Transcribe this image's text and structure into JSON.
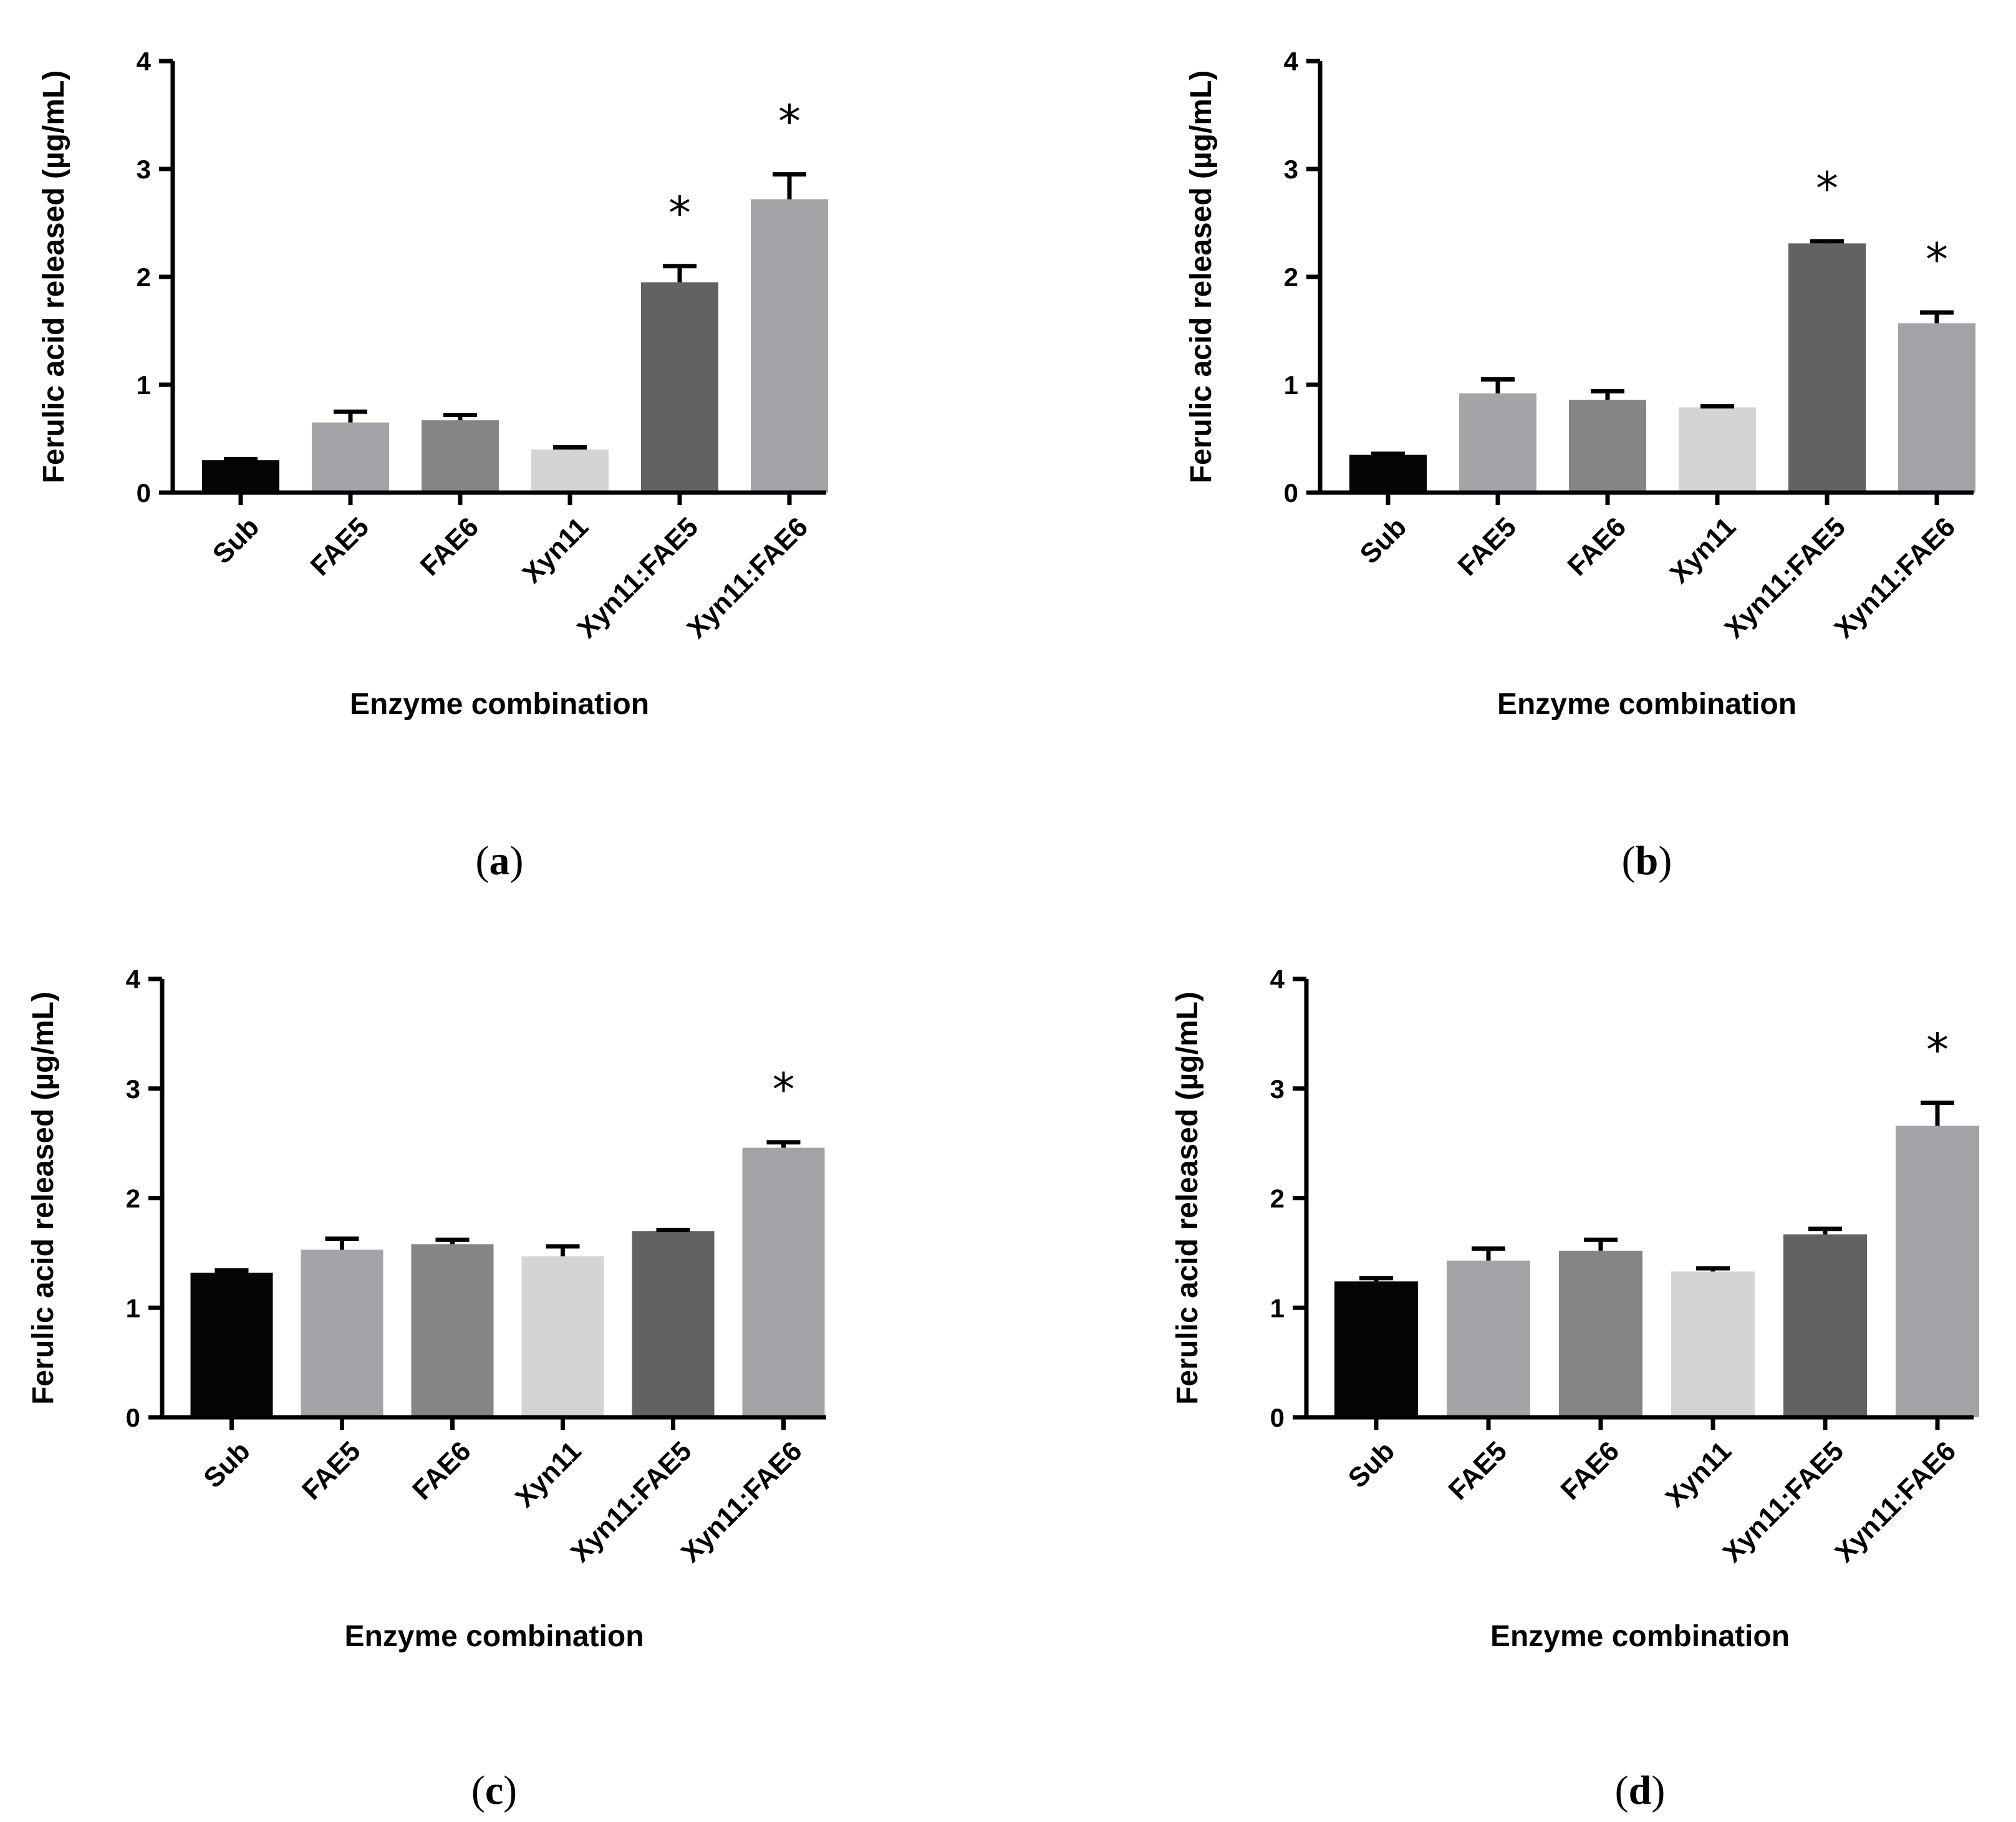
{
  "figure": {
    "panels": [
      "a",
      "b",
      "c",
      "d"
    ]
  },
  "chart_data": [
    {
      "panel": "a",
      "type": "bar",
      "categories": [
        "Sub",
        "FAE5",
        "FAE6",
        "Xyn11",
        "Xyn11:FAE5",
        "Xyn11:FAE6"
      ],
      "values": [
        0.3,
        0.65,
        0.67,
        0.4,
        1.95,
        2.72
      ],
      "errors": [
        0.01,
        0.1,
        0.05,
        0.02,
        0.15,
        0.23
      ],
      "significant": [
        false,
        false,
        false,
        false,
        true,
        true
      ],
      "significance_marker": "*",
      "colors": [
        "#050505",
        "#a3a4a8",
        "#858587",
        "#d4d4d6",
        "#626264",
        "#a2a3a7"
      ],
      "xlabel": "Enzyme combination",
      "ylabel": "Ferulic acid released (µg/mL)",
      "ylim": [
        0,
        4
      ],
      "yticks": [
        "0",
        "1",
        "2",
        "3",
        "4"
      ],
      "panel_label_open": "(",
      "panel_label_letter": "a",
      "panel_label_close": ")"
    },
    {
      "panel": "b",
      "type": "bar",
      "categories": [
        "Sub",
        "FAE5",
        "FAE6",
        "Xyn11",
        "Xyn11:FAE5",
        "Xyn11:FAE6"
      ],
      "values": [
        0.35,
        0.92,
        0.86,
        0.79,
        2.31,
        1.57
      ],
      "errors": [
        0.01,
        0.13,
        0.08,
        0.01,
        0.02,
        0.1
      ],
      "significant": [
        false,
        false,
        false,
        false,
        true,
        true
      ],
      "significance_marker": "*",
      "colors": [
        "#050505",
        "#a3a4a8",
        "#858587",
        "#d4d4d6",
        "#626264",
        "#a2a3a7"
      ],
      "xlabel": "Enzyme combination",
      "ylabel": "Ferulic acid released (µg/mL)",
      "ylim": [
        0,
        4
      ],
      "yticks": [
        "0",
        "1",
        "2",
        "3",
        "4"
      ],
      "panel_label_open": "(",
      "panel_label_letter": "b",
      "panel_label_close": ")"
    },
    {
      "panel": "c",
      "type": "bar",
      "categories": [
        "Sub",
        "FAE5",
        "FAE6",
        "Xyn11",
        "Xyn11:FAE5",
        "Xyn11:FAE6"
      ],
      "values": [
        1.32,
        1.53,
        1.58,
        1.47,
        1.7,
        2.46
      ],
      "errors": [
        0.02,
        0.1,
        0.04,
        0.09,
        0.01,
        0.05
      ],
      "significant": [
        false,
        false,
        false,
        false,
        false,
        true
      ],
      "significance_marker": "*",
      "colors": [
        "#050505",
        "#a3a4a8",
        "#858587",
        "#d4d4d6",
        "#626264",
        "#a2a3a7"
      ],
      "xlabel": "Enzyme combination",
      "ylabel": "Ferulic acid released (µg/mL)",
      "ylim": [
        0,
        4
      ],
      "yticks": [
        "0",
        "1",
        "2",
        "3",
        "4"
      ],
      "panel_label_open": "(",
      "panel_label_letter": "c",
      "panel_label_close": ")"
    },
    {
      "panel": "d",
      "type": "bar",
      "categories": [
        "Sub",
        "FAE5",
        "FAE6",
        "Xyn11",
        "Xyn11:FAE5",
        "Xyn11:FAE6"
      ],
      "values": [
        1.24,
        1.43,
        1.52,
        1.33,
        1.67,
        2.66
      ],
      "errors": [
        0.03,
        0.11,
        0.1,
        0.03,
        0.05,
        0.21
      ],
      "significant": [
        false,
        false,
        false,
        false,
        false,
        true
      ],
      "significance_marker": "*",
      "colors": [
        "#050505",
        "#a3a4a8",
        "#858587",
        "#d4d4d6",
        "#626264",
        "#a2a3a7"
      ],
      "xlabel": "Enzyme combination",
      "ylabel": "Ferulic acid released (µg/mL)",
      "ylim": [
        0,
        4
      ],
      "yticks": [
        "0",
        "1",
        "2",
        "3",
        "4"
      ],
      "panel_label_open": "(",
      "panel_label_letter": "d",
      "panel_label_close": ")"
    }
  ]
}
